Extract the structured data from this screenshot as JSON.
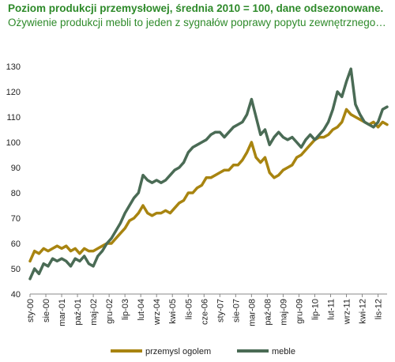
{
  "title": {
    "bold": "Poziom produkcji przemysłowej,  średnia 2010 = 100, dane odsezonowane.",
    "normal": " Ożywienie produkcji mebli to jeden z sygnałów poprawy popytu zewnętrznego…"
  },
  "colors": {
    "przemysl": "#a88410",
    "meble": "#4a6b55",
    "title": "#2e8a2a"
  },
  "chart_data": {
    "type": "line",
    "title": "Poziom produkcji przemysłowej, średnia 2010 = 100, dane odsezonowane.",
    "ylim": [
      40,
      130
    ],
    "yticks": [
      40,
      50,
      60,
      70,
      80,
      90,
      100,
      110,
      120,
      130
    ],
    "xlim": [
      0,
      158
    ],
    "xticks": [
      {
        "i": 0,
        "label": "sty-00"
      },
      {
        "i": 7,
        "label": "sie-00"
      },
      {
        "i": 14,
        "label": "mar-01"
      },
      {
        "i": 21,
        "label": "paź-01"
      },
      {
        "i": 28,
        "label": "maj-02"
      },
      {
        "i": 35,
        "label": "gru-02"
      },
      {
        "i": 42,
        "label": "lip-03"
      },
      {
        "i": 49,
        "label": "lut-04"
      },
      {
        "i": 56,
        "label": "wrz-04"
      },
      {
        "i": 63,
        "label": "kwi-05"
      },
      {
        "i": 70,
        "label": "lis-05"
      },
      {
        "i": 77,
        "label": "cze-06"
      },
      {
        "i": 84,
        "label": "sty-07"
      },
      {
        "i": 91,
        "label": "sie-07"
      },
      {
        "i": 98,
        "label": "mar-08"
      },
      {
        "i": 105,
        "label": "paź-08"
      },
      {
        "i": 112,
        "label": "maj-09"
      },
      {
        "i": 119,
        "label": "gru-09"
      },
      {
        "i": 126,
        "label": "lip-10"
      },
      {
        "i": 133,
        "label": "lut-11"
      },
      {
        "i": 140,
        "label": "wrz-11"
      },
      {
        "i": 147,
        "label": "kwi-12"
      },
      {
        "i": 154,
        "label": "lis-12"
      }
    ],
    "series": [
      {
        "name": "przemysl ogolem",
        "key": "przemysl",
        "points": [
          [
            0,
            53
          ],
          [
            2,
            57
          ],
          [
            4,
            56
          ],
          [
            6,
            58
          ],
          [
            8,
            57
          ],
          [
            10,
            58
          ],
          [
            12,
            59
          ],
          [
            14,
            58
          ],
          [
            16,
            59
          ],
          [
            18,
            57
          ],
          [
            20,
            58
          ],
          [
            22,
            56
          ],
          [
            24,
            58
          ],
          [
            26,
            57
          ],
          [
            28,
            57
          ],
          [
            30,
            58
          ],
          [
            32,
            59
          ],
          [
            34,
            60
          ],
          [
            36,
            60
          ],
          [
            38,
            62
          ],
          [
            40,
            64
          ],
          [
            42,
            66
          ],
          [
            44,
            69
          ],
          [
            46,
            70
          ],
          [
            48,
            72
          ],
          [
            50,
            75
          ],
          [
            52,
            72
          ],
          [
            54,
            71
          ],
          [
            56,
            72
          ],
          [
            58,
            72
          ],
          [
            60,
            73
          ],
          [
            62,
            72
          ],
          [
            64,
            74
          ],
          [
            66,
            76
          ],
          [
            68,
            77
          ],
          [
            70,
            80
          ],
          [
            72,
            80
          ],
          [
            74,
            82
          ],
          [
            76,
            83
          ],
          [
            78,
            86
          ],
          [
            80,
            86
          ],
          [
            82,
            87
          ],
          [
            84,
            88
          ],
          [
            86,
            89
          ],
          [
            88,
            89
          ],
          [
            90,
            91
          ],
          [
            92,
            91
          ],
          [
            94,
            93
          ],
          [
            96,
            96
          ],
          [
            98,
            100
          ],
          [
            100,
            94
          ],
          [
            102,
            92
          ],
          [
            104,
            94
          ],
          [
            106,
            88
          ],
          [
            108,
            86
          ],
          [
            110,
            87
          ],
          [
            112,
            89
          ],
          [
            114,
            90
          ],
          [
            116,
            91
          ],
          [
            118,
            94
          ],
          [
            120,
            95
          ],
          [
            122,
            97
          ],
          [
            124,
            99
          ],
          [
            126,
            101
          ],
          [
            128,
            102
          ],
          [
            130,
            102
          ],
          [
            132,
            103
          ],
          [
            134,
            105
          ],
          [
            136,
            106
          ],
          [
            138,
            108
          ],
          [
            140,
            113
          ],
          [
            142,
            111
          ],
          [
            144,
            110
          ],
          [
            146,
            109
          ],
          [
            148,
            108
          ],
          [
            150,
            107
          ],
          [
            152,
            108
          ],
          [
            154,
            106
          ],
          [
            156,
            108
          ],
          [
            158,
            107
          ]
        ]
      },
      {
        "name": "meble",
        "key": "meble",
        "points": [
          [
            0,
            46
          ],
          [
            2,
            50
          ],
          [
            4,
            48
          ],
          [
            6,
            52
          ],
          [
            8,
            51
          ],
          [
            10,
            54
          ],
          [
            12,
            53
          ],
          [
            14,
            54
          ],
          [
            16,
            53
          ],
          [
            18,
            51
          ],
          [
            20,
            54
          ],
          [
            22,
            53
          ],
          [
            24,
            55
          ],
          [
            26,
            52
          ],
          [
            28,
            51
          ],
          [
            30,
            55
          ],
          [
            32,
            57
          ],
          [
            34,
            60
          ],
          [
            36,
            62
          ],
          [
            38,
            65
          ],
          [
            40,
            68
          ],
          [
            42,
            72
          ],
          [
            44,
            75
          ],
          [
            46,
            78
          ],
          [
            48,
            80
          ],
          [
            50,
            87
          ],
          [
            52,
            85
          ],
          [
            54,
            84
          ],
          [
            56,
            85
          ],
          [
            58,
            84
          ],
          [
            60,
            85
          ],
          [
            62,
            87
          ],
          [
            64,
            89
          ],
          [
            66,
            90
          ],
          [
            68,
            92
          ],
          [
            70,
            96
          ],
          [
            72,
            98
          ],
          [
            74,
            99
          ],
          [
            76,
            100
          ],
          [
            78,
            101
          ],
          [
            80,
            103
          ],
          [
            82,
            104
          ],
          [
            84,
            104
          ],
          [
            86,
            102
          ],
          [
            88,
            104
          ],
          [
            90,
            106
          ],
          [
            92,
            107
          ],
          [
            94,
            108
          ],
          [
            96,
            111
          ],
          [
            98,
            117
          ],
          [
            100,
            110
          ],
          [
            102,
            103
          ],
          [
            104,
            105
          ],
          [
            106,
            99
          ],
          [
            108,
            102
          ],
          [
            110,
            104
          ],
          [
            112,
            102
          ],
          [
            114,
            101
          ],
          [
            116,
            102
          ],
          [
            118,
            100
          ],
          [
            120,
            98
          ],
          [
            122,
            101
          ],
          [
            124,
            103
          ],
          [
            126,
            101
          ],
          [
            128,
            103
          ],
          [
            130,
            105
          ],
          [
            132,
            108
          ],
          [
            134,
            113
          ],
          [
            136,
            120
          ],
          [
            138,
            118
          ],
          [
            140,
            124
          ],
          [
            142,
            129
          ],
          [
            144,
            115
          ],
          [
            146,
            111
          ],
          [
            148,
            108
          ],
          [
            150,
            107
          ],
          [
            152,
            106
          ],
          [
            154,
            108
          ],
          [
            156,
            113
          ],
          [
            158,
            114
          ]
        ]
      }
    ],
    "legend": [
      {
        "label": "przemysl ogolem",
        "key": "przemysl"
      },
      {
        "label": "meble",
        "key": "meble"
      }
    ],
    "legend_position": "bottom",
    "grid": false
  }
}
